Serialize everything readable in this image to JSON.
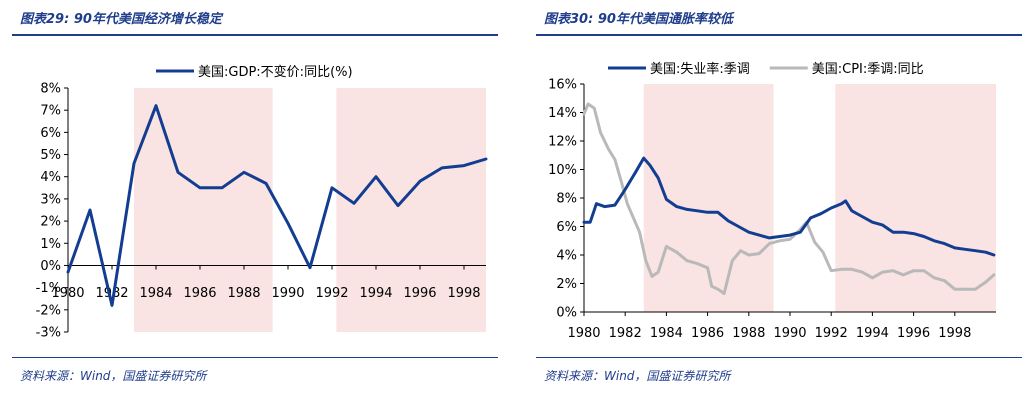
{
  "colors": {
    "accent": "#1f3d8c",
    "series_blue": "#133d91",
    "series_gray": "#b9b9b9",
    "shade": "#f9e3e3"
  },
  "chart_data": [
    {
      "type": "line",
      "title": "图表29: 90年代美国经济增长稳定",
      "source": "资料来源：Wind，国盛证券研究所",
      "xlim": [
        1980,
        1999
      ],
      "ylim": [
        -3,
        8
      ],
      "x_ticks": [
        1980,
        1982,
        1984,
        1986,
        1988,
        1990,
        1992,
        1994,
        1996,
        1998
      ],
      "x_tick_labels": [
        "1980",
        "1982",
        "1984",
        "1986",
        "1988",
        "1990",
        "1992",
        "1994",
        "1996",
        "1998"
      ],
      "y_ticks": [
        -3,
        -2,
        -1,
        0,
        1,
        2,
        3,
        4,
        5,
        6,
        7,
        8
      ],
      "y_tick_labels": [
        "-3%",
        "-2%",
        "-1%",
        "0%",
        "1%",
        "2%",
        "3%",
        "4%",
        "5%",
        "6%",
        "7%",
        "8%"
      ],
      "legend_position": "top",
      "shaded_ranges": [
        [
          1983,
          1989.3
        ],
        [
          1992.2,
          1999
        ]
      ],
      "series": [
        {
          "name": "美国:GDP:不变价:同比(%)",
          "color": "#133d91",
          "x": [
            1980,
            1981,
            1982,
            1983,
            1984,
            1985,
            1986,
            1987,
            1988,
            1989,
            1990,
            1991,
            1992,
            1993,
            1994,
            1995,
            1996,
            1997,
            1998,
            1999
          ],
          "y": [
            -0.3,
            2.5,
            -1.8,
            4.6,
            7.2,
            4.2,
            3.5,
            3.5,
            4.2,
            3.7,
            1.9,
            -0.1,
            3.5,
            2.8,
            4.0,
            2.7,
            3.8,
            4.4,
            4.5,
            4.8
          ]
        }
      ]
    },
    {
      "type": "line",
      "title": "图表30: 90年代美国通胀率较低",
      "source": "资料来源：Wind，国盛证券研究所",
      "xlim": [
        1980,
        2000
      ],
      "ylim": [
        0,
        16
      ],
      "x_ticks": [
        1980,
        1982,
        1984,
        1986,
        1988,
        1990,
        1992,
        1994,
        1996,
        1998
      ],
      "x_tick_labels": [
        "1980",
        "1982",
        "1984",
        "1986",
        "1988",
        "1990",
        "1992",
        "1994",
        "1996",
        "1998"
      ],
      "y_ticks": [
        0,
        2,
        4,
        6,
        8,
        10,
        12,
        14,
        16
      ],
      "y_tick_labels": [
        "0%",
        "2%",
        "4%",
        "6%",
        "8%",
        "10%",
        "12%",
        "14%",
        "16%"
      ],
      "legend_position": "top",
      "shaded_ranges": [
        [
          1982.9,
          1989.2
        ],
        [
          1992.2,
          2000
        ]
      ],
      "series": [
        {
          "name": "美国:失业率:季调",
          "color": "#133d91",
          "x": [
            1980,
            1980.3,
            1980.6,
            1981,
            1981.5,
            1982,
            1982.5,
            1982.9,
            1983.2,
            1983.6,
            1984,
            1984.5,
            1985,
            1985.5,
            1986,
            1986.5,
            1987,
            1987.5,
            1988,
            1988.5,
            1989,
            1989.5,
            1990,
            1990.5,
            1991,
            1991.5,
            1992,
            1992.5,
            1992.7,
            1993,
            1993.5,
            1994,
            1994.5,
            1995,
            1995.5,
            1996,
            1996.5,
            1997,
            1997.5,
            1998,
            1998.5,
            1999,
            1999.5,
            1999.9
          ],
          "y": [
            6.3,
            6.3,
            7.6,
            7.4,
            7.5,
            8.6,
            9.8,
            10.8,
            10.3,
            9.4,
            7.9,
            7.4,
            7.2,
            7.1,
            7.0,
            7.0,
            6.4,
            6.0,
            5.6,
            5.4,
            5.2,
            5.3,
            5.4,
            5.6,
            6.6,
            6.9,
            7.3,
            7.6,
            7.8,
            7.1,
            6.7,
            6.3,
            6.1,
            5.6,
            5.6,
            5.5,
            5.3,
            5.0,
            4.8,
            4.5,
            4.4,
            4.3,
            4.2,
            4.0
          ]
        },
        {
          "name": "美国:CPI:季调:同比",
          "color": "#b9b9b9",
          "x": [
            1980,
            1980.2,
            1980.5,
            1980.8,
            1981.2,
            1981.5,
            1981.8,
            1982.1,
            1982.4,
            1982.7,
            1983,
            1983.3,
            1983.6,
            1984,
            1984.5,
            1985,
            1985.5,
            1986,
            1986.2,
            1986.5,
            1986.8,
            1987.2,
            1987.6,
            1988,
            1988.5,
            1989,
            1989.5,
            1990,
            1990.5,
            1990.8,
            1991.2,
            1991.6,
            1992,
            1992.5,
            1993,
            1993.5,
            1994,
            1994.5,
            1995,
            1995.5,
            1996,
            1996.5,
            1997,
            1997.5,
            1998,
            1998.5,
            1999,
            1999.5,
            1999.9
          ],
          "y": [
            13.9,
            14.6,
            14.3,
            12.6,
            11.4,
            10.7,
            9.2,
            7.6,
            6.6,
            5.6,
            3.6,
            2.5,
            2.8,
            4.6,
            4.2,
            3.6,
            3.4,
            3.1,
            1.8,
            1.6,
            1.3,
            3.6,
            4.3,
            4.0,
            4.1,
            4.8,
            5.0,
            5.1,
            5.8,
            6.3,
            4.9,
            4.2,
            2.9,
            3.0,
            3.0,
            2.8,
            2.4,
            2.8,
            2.9,
            2.6,
            2.9,
            2.9,
            2.4,
            2.2,
            1.6,
            1.6,
            1.6,
            2.1,
            2.6
          ]
        }
      ]
    }
  ]
}
